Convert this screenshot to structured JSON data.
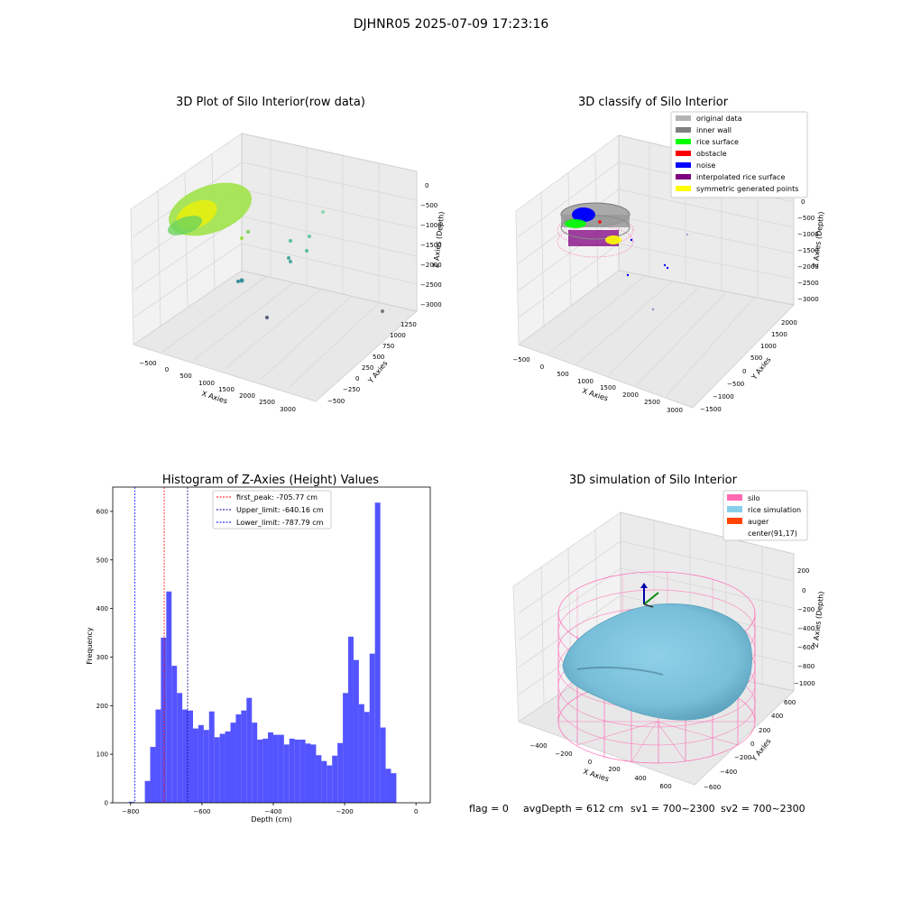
{
  "suptitle": "DJHNR05 2025-07-09 17:23:16",
  "footer": {
    "flag": "flag = 0",
    "avg": "avgDepth = 612 cm",
    "sv1": "sv1 = 700~2300",
    "sv2": "sv2 = 700~2300"
  },
  "chart_data": [
    {
      "type": "scatter",
      "projection": "3d",
      "title": "3D Plot of Silo Interior(row data)",
      "xlabel": "X Axies",
      "ylabel": "Y Axies",
      "zlabel": "Z Axies (Depth)",
      "xticks": [
        "−500",
        "0",
        "500",
        "1000",
        "1500",
        "2000",
        "2500",
        "3000"
      ],
      "yticks": [
        "−500",
        "−250",
        "0",
        "250",
        "500",
        "750",
        "1000",
        "1250"
      ],
      "zticks": [
        "0",
        "−500",
        "−1000",
        "−1500",
        "−2000",
        "−2500",
        "−3000"
      ],
      "colors": {
        "near": "#b8e82a",
        "mid": "#6ad26a",
        "far": "#3a8f9a",
        "deep": "#555d7a"
      }
    },
    {
      "type": "scatter",
      "projection": "3d",
      "title": "3D classify of Silo Interior",
      "xlabel": "X Axies",
      "ylabel": "Y Axies",
      "zlabel": "Z Axies (Depth)",
      "xticks": [
        "−500",
        "0",
        "500",
        "1000",
        "1500",
        "2000",
        "2500",
        "3000"
      ],
      "yticks": [
        "−1500",
        "−1000",
        "−500",
        "0",
        "500",
        "1000",
        "1500",
        "2000"
      ],
      "zticks": [
        "0",
        "−500",
        "−1000",
        "−1500",
        "−2000",
        "−2500",
        "−3000"
      ],
      "legend_position": "top-right",
      "legend": [
        {
          "label": "original data",
          "color": "#b3b3b3"
        },
        {
          "label": "inner wall",
          "color": "#808080"
        },
        {
          "label": "rice surface",
          "color": "#00ff00"
        },
        {
          "label": "obstacle",
          "color": "#ff0000"
        },
        {
          "label": "noise",
          "color": "#0000ff"
        },
        {
          "label": "interpolated rice surface",
          "color": "#800080"
        },
        {
          "label": "symmetric generated points",
          "color": "#ffff00"
        }
      ]
    },
    {
      "type": "bar",
      "subtype": "histogram",
      "title": "Histogram of Z-Axies (Height) Values",
      "xlabel": "Depth (cm)",
      "ylabel": "Frequency",
      "xlim": [
        -850,
        40
      ],
      "ylim": [
        0,
        650
      ],
      "bin_width": 15,
      "bar_color": "#4b4bff",
      "xticks": [
        {
          "value": -800,
          "label": "−800"
        },
        {
          "value": -600,
          "label": "−600"
        },
        {
          "value": -400,
          "label": "−400"
        },
        {
          "value": -200,
          "label": "−200"
        },
        {
          "value": 0,
          "label": "0"
        }
      ],
      "yticks": [
        {
          "value": 0,
          "label": "0"
        },
        {
          "value": 100,
          "label": "100"
        },
        {
          "value": 200,
          "label": "200"
        },
        {
          "value": 300,
          "label": "300"
        },
        {
          "value": 400,
          "label": "400"
        },
        {
          "value": 500,
          "label": "500"
        },
        {
          "value": 600,
          "label": "600"
        }
      ],
      "bins": [
        {
          "x": -805,
          "count": 2
        },
        {
          "x": -760,
          "count": 45
        },
        {
          "x": -745,
          "count": 115
        },
        {
          "x": -730,
          "count": 192
        },
        {
          "x": -715,
          "count": 340
        },
        {
          "x": -700,
          "count": 435
        },
        {
          "x": -685,
          "count": 282
        },
        {
          "x": -670,
          "count": 226
        },
        {
          "x": -655,
          "count": 192
        },
        {
          "x": -640,
          "count": 190
        },
        {
          "x": -625,
          "count": 153
        },
        {
          "x": -610,
          "count": 160
        },
        {
          "x": -595,
          "count": 150
        },
        {
          "x": -580,
          "count": 188
        },
        {
          "x": -565,
          "count": 135
        },
        {
          "x": -550,
          "count": 142
        },
        {
          "x": -535,
          "count": 147
        },
        {
          "x": -520,
          "count": 165
        },
        {
          "x": -505,
          "count": 182
        },
        {
          "x": -490,
          "count": 190
        },
        {
          "x": -475,
          "count": 216
        },
        {
          "x": -460,
          "count": 165
        },
        {
          "x": -445,
          "count": 130
        },
        {
          "x": -430,
          "count": 132
        },
        {
          "x": -415,
          "count": 145
        },
        {
          "x": -400,
          "count": 140
        },
        {
          "x": -385,
          "count": 140
        },
        {
          "x": -370,
          "count": 120
        },
        {
          "x": -355,
          "count": 132
        },
        {
          "x": -340,
          "count": 130
        },
        {
          "x": -325,
          "count": 130
        },
        {
          "x": -310,
          "count": 122
        },
        {
          "x": -295,
          "count": 120
        },
        {
          "x": -280,
          "count": 98
        },
        {
          "x": -265,
          "count": 86
        },
        {
          "x": -250,
          "count": 77
        },
        {
          "x": -235,
          "count": 97
        },
        {
          "x": -220,
          "count": 123
        },
        {
          "x": -205,
          "count": 226
        },
        {
          "x": -190,
          "count": 342
        },
        {
          "x": -175,
          "count": 294
        },
        {
          "x": -160,
          "count": 203
        },
        {
          "x": -145,
          "count": 187
        },
        {
          "x": -130,
          "count": 307
        },
        {
          "x": -115,
          "count": 618
        },
        {
          "x": -100,
          "count": 155
        },
        {
          "x": -85,
          "count": 70
        },
        {
          "x": -70,
          "count": 61
        }
      ],
      "vlines": [
        {
          "label": "first_peak: -705.77 cm",
          "x": -705.77,
          "color": "#ff0000"
        },
        {
          "label": "Upper_limit: -640.16 cm",
          "x": -640.16,
          "color": "#00008b"
        },
        {
          "label": "Lower_limit: -787.79 cm",
          "x": -787.79,
          "color": "#0000ff"
        }
      ]
    },
    {
      "type": "surface",
      "projection": "3d",
      "title": "3D simulation of Silo Interior",
      "xlabel": "X Axies",
      "ylabel": "Y Axies",
      "zlabel": "Z Axies (Depth)",
      "xticks": [
        "−400",
        "−200",
        "0",
        "200",
        "400",
        "600"
      ],
      "yticks": [
        "−600",
        "−400",
        "−200",
        "0",
        "200",
        "400",
        "600"
      ],
      "zticks": [
        "200",
        "0",
        "−200",
        "−400",
        "−600",
        "−800",
        "−1000"
      ],
      "legend_position": "top-right",
      "legend": [
        {
          "label": "silo",
          "color": "#ff69b4"
        },
        {
          "label": "rice simulation",
          "color": "#87ceeb"
        },
        {
          "label": "auger",
          "color": "#ff4500"
        },
        {
          "label": "center(91,17)",
          "color": "#ffffff"
        }
      ]
    }
  ]
}
